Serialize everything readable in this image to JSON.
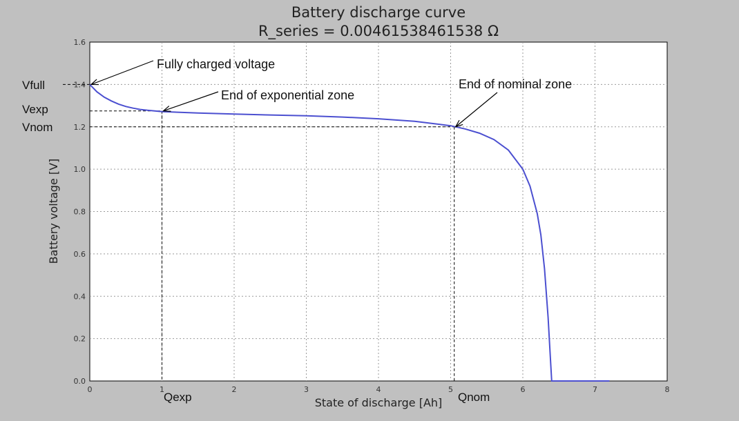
{
  "chart_data": {
    "type": "line",
    "title": "Battery discharge curve",
    "subtitle": "R_series = 0.00461538461538 Ω",
    "xlabel": "State of discharge [Ah]",
    "ylabel": "Battery voltage [V]",
    "xlim": [
      0,
      8
    ],
    "ylim": [
      0,
      1.6
    ],
    "xticks": [
      "0",
      "1",
      "2",
      "3",
      "4",
      "5",
      "6",
      "7",
      "8"
    ],
    "yticks": [
      "0.0",
      "0.2",
      "0.4",
      "0.6",
      "0.8",
      "1.0",
      "1.2",
      "1.4",
      "1.6"
    ],
    "grid": true,
    "series_color": "#4b4fd0",
    "series": [
      {
        "x": [
          0,
          0.1,
          0.2,
          0.3,
          0.4,
          0.5,
          0.6,
          0.7,
          0.8,
          0.9,
          1.0,
          1.5,
          2.0,
          2.5,
          3.0,
          3.5,
          4.0,
          4.5,
          5.0,
          5.2,
          5.4,
          5.6,
          5.8,
          6.0,
          6.1,
          6.2,
          6.25,
          6.3,
          6.35,
          6.38,
          6.4,
          6.42,
          7.2
        ],
        "y": [
          1.4,
          1.365,
          1.34,
          1.322,
          1.307,
          1.296,
          1.288,
          1.282,
          1.278,
          1.275,
          1.272,
          1.265,
          1.26,
          1.256,
          1.252,
          1.246,
          1.238,
          1.226,
          1.205,
          1.19,
          1.17,
          1.14,
          1.09,
          1.0,
          0.92,
          0.79,
          0.69,
          0.53,
          0.3,
          0.12,
          0.0,
          0.0,
          0.0
        ]
      }
    ],
    "annotations": [
      {
        "text": "Fully charged voltage"
      },
      {
        "text": "End of exponential zone"
      },
      {
        "text": "End of nominal zone"
      }
    ],
    "markers": {
      "vfull": "Vfull",
      "vexp": "Vexp",
      "vnom": "Vnom",
      "qexp": "Qexp",
      "qnom": "Qnom"
    },
    "points": {
      "full": {
        "x": 0,
        "y": 1.4
      },
      "exp": {
        "x": 1.0,
        "y": 1.275
      },
      "nom": {
        "x": 5.05,
        "y": 1.2
      }
    }
  }
}
